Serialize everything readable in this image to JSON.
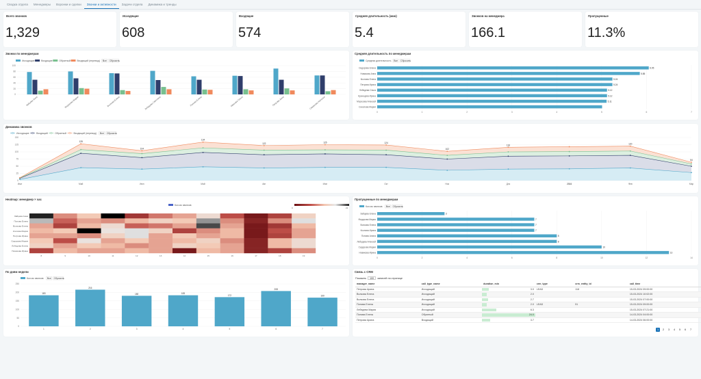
{
  "tabs": [
    "Сводка отдела",
    "Менеджеры",
    "Воронки и сделки",
    "Звонки и активности",
    "Задачи отдела",
    "Динамика и тренды"
  ],
  "active_tab": 3,
  "kpis": [
    {
      "label": "Всего звонков",
      "value": "1,329"
    },
    {
      "label": "Исходящие",
      "value": "608"
    },
    {
      "label": "Входящие",
      "value": "574"
    },
    {
      "label": "Средняя длительность (мин)",
      "value": "5.4"
    },
    {
      "label": "Звонков на менеджера",
      "value": "166.1"
    },
    {
      "label": "Пропущенные",
      "value": "11.3%"
    }
  ],
  "colors": {
    "incoming": "#4fa7c9",
    "outgoing": "#2f3e6b",
    "callback": "#78c08f",
    "internal": "#f08a5d",
    "accent": "#1a73b8"
  },
  "panels": {
    "calls_by_manager": "Звонки по менеджерам",
    "avg_duration": "Средняя длительность по менеджерам",
    "dynamics": "Динамика звонков",
    "heatmap": "Heatmap: менеджер × час",
    "missed": "Пропущенные по менеджерам",
    "weekday": "По дням недели",
    "crm": "Связь с CRM"
  },
  "legend_all": "Все",
  "legend_reset": "Сбросить",
  "chart_data": [
    {
      "type": "bar",
      "id": "calls_by_manager",
      "categories": [
        "Зайцева Анна",
        "Федорова Мария",
        "Волкова Елена",
        "Лебедева Светлана",
        "Попова Елена",
        "Иванова Ольга",
        "Петрова Анна",
        "Смирнова Наталья"
      ],
      "series": [
        {
          "name": "Исходящие",
          "values": [
            78,
            80,
            74,
            82,
            63,
            65,
            90,
            66
          ]
        },
        {
          "name": "Входящие",
          "values": [
            51,
            56,
            73,
            50,
            51,
            64,
            51,
            66
          ]
        },
        {
          "name": "Обратный",
          "values": [
            13,
            22,
            15,
            26,
            17,
            18,
            21,
            11
          ]
        },
        {
          "name": "Входящий (перевод)",
          "values": [
            18,
            20,
            12,
            18,
            16,
            14,
            14,
            15
          ]
        }
      ],
      "ylim": [
        0,
        100
      ],
      "yticks": [
        0,
        20,
        40,
        60,
        80,
        100
      ]
    },
    {
      "type": "bar",
      "id": "avg_duration",
      "orientation": "horizontal",
      "categories": [
        "Сидорова Елена",
        "Новикова Анна",
        "Козлова Елена",
        "Петрова Ирина",
        "Лебедева Ольга",
        "Кузнецова Ирина",
        "Морозова Алексей",
        "Соколова Мария"
      ],
      "series": [
        {
          "name": "Средняя длительность",
          "values": [
            6.05,
            5.85,
            5.24,
            5.24,
            5.12,
            5.12,
            5.11,
            5.01
          ]
        }
      ],
      "data_labels": [
        "6.05",
        "5.85",
        "5.24",
        "5.24",
        "5.12",
        "5.12",
        "5.11",
        ""
      ],
      "xlim": [
        0,
        7
      ],
      "xticks": [
        0,
        1,
        2,
        3,
        4,
        5,
        6,
        7
      ]
    },
    {
      "type": "area",
      "id": "dynamics",
      "x": [
        "Июл",
        "Май",
        "Июн",
        "Май",
        "Авг",
        "Июн",
        "Окт",
        "Ноя",
        "Дек",
        "2024",
        "Фев",
        "Мар"
      ],
      "year_label_index": 9,
      "series": [
        {
          "name": "Исходящие",
          "values": [
            4,
            45,
            40,
            48,
            44,
            46,
            46,
            36,
            40,
            41,
            44,
            28
          ]
        },
        {
          "name": "Входящий",
          "values": [
            8,
            95,
            80,
            98,
            90,
            93,
            90,
            75,
            85,
            86,
            88,
            50
          ]
        },
        {
          "name": "Обратный",
          "values": [
            9,
            108,
            94,
            114,
            106,
            107,
            106,
            88,
            100,
            101,
            103,
            58
          ]
        },
        {
          "name": "Входящий (перевод)",
          "values": [
            10,
            128,
            104,
            134,
            122,
            125,
            124,
            102,
            116,
            118,
            120,
            64
          ]
        }
      ],
      "data_labels": [
        "",
        "128",
        "104",
        "134",
        "122",
        "125",
        "124",
        "102",
        "116",
        "",
        "120",
        "64"
      ],
      "ylim": [
        0,
        150
      ],
      "yticks": [
        0,
        25,
        50,
        75,
        100,
        125,
        150
      ]
    },
    {
      "type": "heatmap",
      "id": "heatmap",
      "legend": "Кол-во звонков",
      "rows": [
        "Зайцева Анна",
        "Попова Елена",
        "Волкова Елена",
        "Козлова Мария",
        "Петрова Ирина",
        "Сидорова Мария",
        "Лебедева Елена",
        "Новикова Ирина"
      ],
      "cols": [
        "8",
        "9",
        "10",
        "11",
        "12",
        "13",
        "14",
        "15",
        "16",
        "17",
        "18",
        "19"
      ],
      "values": [
        [
          21,
          9,
          12,
          22,
          4,
          8,
          10,
          14,
          6,
          1,
          5,
          13
        ],
        [
          17,
          7,
          10,
          9,
          11,
          13,
          12,
          18,
          9,
          2,
          9,
          16
        ],
        [
          10,
          5,
          11,
          14,
          7,
          8,
          10,
          20,
          10,
          1,
          4,
          11
        ],
        [
          11,
          12,
          22,
          15,
          16,
          13,
          5,
          9,
          11,
          1,
          6,
          10
        ],
        [
          10,
          10,
          9,
          13,
          16,
          10,
          12,
          10,
          11,
          1,
          5,
          10
        ],
        [
          12,
          6,
          15,
          10,
          12,
          10,
          11,
          13,
          9,
          2,
          11,
          14
        ],
        [
          13,
          10,
          12,
          11,
          9,
          10,
          13,
          12,
          10,
          2,
          11,
          14
        ],
        [
          5,
          11,
          10,
          10,
          11,
          10,
          1,
          11,
          10,
          2,
          5,
          9
        ]
      ],
      "scale_min": "0",
      "scale_max": "21"
    },
    {
      "type": "bar",
      "id": "missed",
      "orientation": "horizontal",
      "legend": "Кол-во звонков",
      "categories": [
        "Зайцева Елена",
        "Федорова Мария",
        "Волкова Елена",
        "Козлова Ирина",
        "Попова Алина",
        "Лебедева Алексей",
        "Сидорова Мария",
        "Новикова Ирина"
      ],
      "values": [
        3,
        7,
        7,
        7,
        8,
        8,
        10,
        13
      ],
      "xlim": [
        0,
        14
      ],
      "xticks": [
        0,
        2,
        4,
        6,
        8,
        10,
        12,
        14
      ]
    },
    {
      "type": "bar",
      "id": "weekday",
      "legend": "Кол-во звонков",
      "categories": [
        "1",
        "2",
        "3",
        "4",
        "5",
        "6",
        "7"
      ],
      "values": [
        183,
        216,
        180,
        183,
        172,
        208,
        169
      ],
      "ylim": [
        0,
        250
      ],
      "yticks": [
        0,
        50,
        100,
        150,
        200,
        250
      ]
    }
  ],
  "crm": {
    "show_prefix": "Показать",
    "page_size": "100",
    "show_suffix": "записей на странице",
    "columns": [
      "manager_name",
      "call_type_name",
      "duration_min",
      "crm_type",
      "crm_entity_id",
      "call_time"
    ],
    "rows": [
      [
        "Петрова Арина",
        "Исходящий",
        "3.0",
        "LEAD",
        "118",
        "15-03-2024 09:00:00"
      ],
      [
        "Волкова Елена",
        "Исходящий",
        "2.0",
        "",
        "",
        "15-03-2024 10:02:00"
      ],
      [
        "Волкова Елена",
        "Исходящий",
        "2.7",
        "",
        "",
        "15-03-2024 07:00:00"
      ],
      [
        "Попова Елена",
        "Исходящий",
        "2.0",
        "LEAD",
        "51",
        "15-03-2024 09:00:00"
      ],
      [
        "Лебедева Мария",
        "Исходящий",
        "6.3",
        "",
        "",
        "15-03-2024 07:21:00"
      ],
      [
        "Попова Елена",
        "Обратный",
        "24.0",
        "",
        "",
        "14-03-2024 04:00:00"
      ],
      [
        "Петрова Арина",
        "Входящий",
        "3.7",
        "",
        "",
        "14-03-2024 06:00:00"
      ]
    ],
    "duration_values": [
      3.0,
      2.0,
      2.7,
      2.0,
      6.3,
      24.0,
      3.7
    ],
    "pages": [
      "1",
      "2",
      "3",
      "4",
      "5",
      "6",
      "7"
    ],
    "active_page": 0
  }
}
